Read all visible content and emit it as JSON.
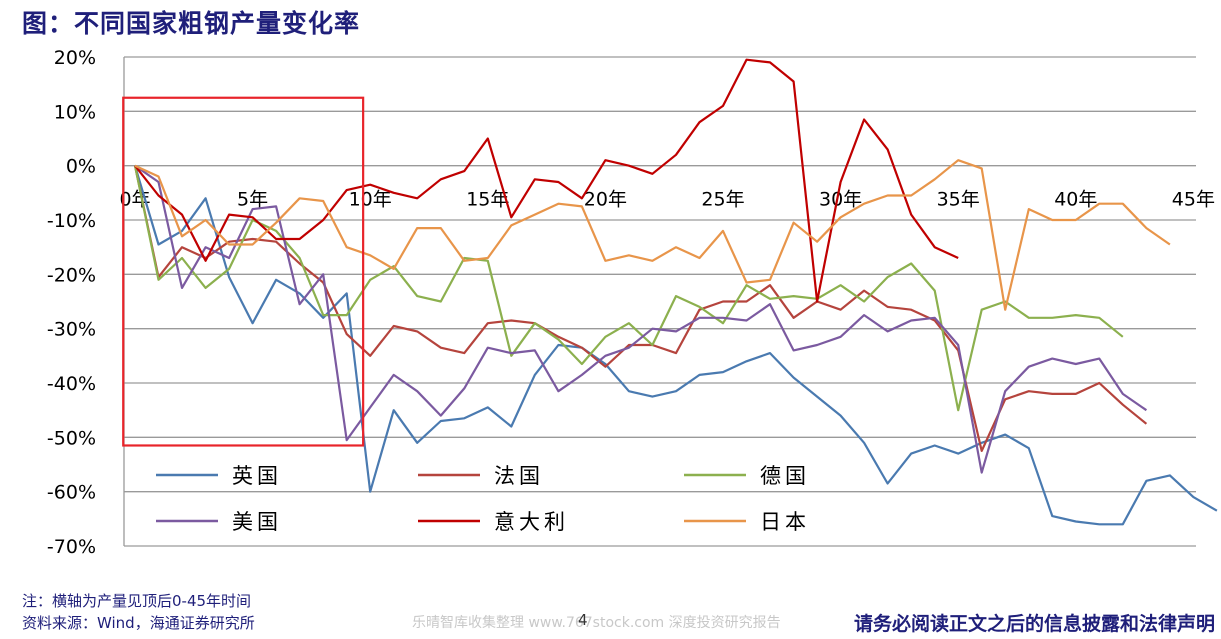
{
  "header": {
    "title": "图：不同国家粗钢产量变化率"
  },
  "notes": {
    "line1": "注：横轴为产量见顶后0-45年时间",
    "line2": "资料来源：Wind，海通证券研究所"
  },
  "footer": {
    "watermark": "乐晴智库收集整理 www.767stock.com 深度投资研究报告",
    "page": "4",
    "disclaimer": "请务必阅读正文之后的信息披露和法律声明"
  },
  "chart_data": {
    "type": "line",
    "x_tick_labels": [
      "0年",
      "5年",
      "10年",
      "15年",
      "20年",
      "25年",
      "30年",
      "35年",
      "40年",
      "45年"
    ],
    "x_ticks": [
      0,
      5,
      10,
      15,
      20,
      25,
      30,
      35,
      40,
      45
    ],
    "xlim": [
      0,
      45
    ],
    "ylim": [
      -70,
      20
    ],
    "y_ticks": [
      20,
      10,
      0,
      -10,
      -20,
      -30,
      -40,
      -50,
      -60,
      -70
    ],
    "y_tick_labels": [
      "20%",
      "10%",
      "0%",
      "-10%",
      "-20%",
      "-30%",
      "-40%",
      "-50%",
      "-60%",
      "-70%"
    ],
    "grid": "horizontal",
    "legend": "bottom-inside",
    "highlight_box": {
      "x": [
        -0.5,
        9.7
      ],
      "y": [
        -51.5,
        12.5
      ],
      "color": "#e8242a"
    },
    "series": [
      {
        "name": "英国",
        "color": "#4a7ab0",
        "values": [
          0,
          -14.5,
          -12,
          -6,
          -20.5,
          -29,
          -21,
          -23.5,
          -28,
          -23.5,
          -60,
          -45,
          -51,
          -47,
          -46.5,
          -44.5,
          -48,
          -38.5,
          -33,
          -33.5,
          -36.5,
          -41.5,
          -42.5,
          -41.5,
          -38.5,
          -38,
          -36,
          -34.5,
          -39,
          -42.5,
          -46,
          -51,
          -58.5,
          -53,
          -51.5,
          -53,
          -51,
          -49.5,
          -52,
          -64.5,
          -65.5,
          -66,
          -66,
          -58,
          -57,
          -61,
          -63.5
        ]
      },
      {
        "name": "法国",
        "color": "#b5443d",
        "values": [
          0,
          -20.5,
          -15,
          -17,
          -14,
          -13.5,
          -14,
          -18,
          -21.5,
          -31,
          -35,
          -29.5,
          -30.5,
          -33.5,
          -34.5,
          -29,
          -28.5,
          -29,
          -31.5,
          -33.5,
          -37,
          -33,
          -33,
          -34.5,
          -26.5,
          -25,
          -25,
          -22,
          -28,
          -25,
          -26.5,
          -23,
          -26,
          -26.5,
          -28.5,
          -34,
          -52.5,
          -43,
          -41.5,
          -42,
          -42,
          -40,
          -44,
          -47.5
        ]
      },
      {
        "name": "德国",
        "color": "#8cb04e",
        "values": [
          0,
          -21,
          -17,
          -22.5,
          -19,
          -10,
          -12,
          -17,
          -27.5,
          -27.5,
          -21,
          -18.5,
          -24,
          -25,
          -17,
          -17.5,
          -35,
          -29,
          -32,
          -36.5,
          -31.5,
          -29,
          -33,
          -24,
          -26,
          -29,
          -22,
          -24.5,
          -24,
          -24.5,
          -22,
          -25,
          -20.5,
          -18,
          -23,
          -45,
          -26.5,
          -25,
          -28,
          -28,
          -27.5,
          -28,
          -31.5
        ]
      },
      {
        "name": "美国",
        "color": "#7b5aa0",
        "values": [
          0,
          -3,
          -22.5,
          -15,
          -17,
          -8,
          -7.5,
          -25.5,
          -20,
          -50.5,
          -44.5,
          -38.5,
          -41.5,
          -46,
          -41,
          -33.5,
          -34.5,
          -34,
          -41.5,
          -38.5,
          -35,
          -33.5,
          -30,
          -30.5,
          -28,
          -28,
          -28.5,
          -25.5,
          -34,
          -33,
          -31.5,
          -27.5,
          -30.5,
          -28.5,
          -28,
          -33,
          -56.5,
          -41.5,
          -37,
          -35.5,
          -36.5,
          -35.5,
          -42,
          -45
        ]
      },
      {
        "name": "意大利",
        "color": "#c00000",
        "values": [
          0,
          -5.5,
          -9,
          -17.5,
          -9,
          -9.5,
          -13.5,
          -13.5,
          -10,
          -4.5,
          -3.5,
          -5,
          -6,
          -2.5,
          -1,
          5,
          -9.5,
          -2.5,
          -3,
          -6,
          1,
          0,
          -1.5,
          2,
          8,
          11,
          19.5,
          19,
          15.5,
          -25,
          -3,
          8.5,
          3,
          -9,
          -15,
          -17
        ]
      },
      {
        "name": "日本",
        "color": "#e8954a",
        "values": [
          0,
          -2,
          -13,
          -10,
          -14.5,
          -14.5,
          -10.5,
          -6,
          -6.5,
          -15,
          -16.5,
          -19,
          -11.5,
          -11.5,
          -17.5,
          -17,
          -11,
          -9,
          -7,
          -7.5,
          -17.5,
          -16.5,
          -17.5,
          -15,
          -17,
          -12,
          -21.5,
          -21,
          -10.5,
          -14,
          -9.5,
          -7,
          -5.5,
          -5.5,
          -2.5,
          1,
          -0.5,
          -26.5,
          -8,
          -10,
          -10,
          -7,
          -7,
          -11.5,
          -14.5
        ]
      }
    ]
  }
}
